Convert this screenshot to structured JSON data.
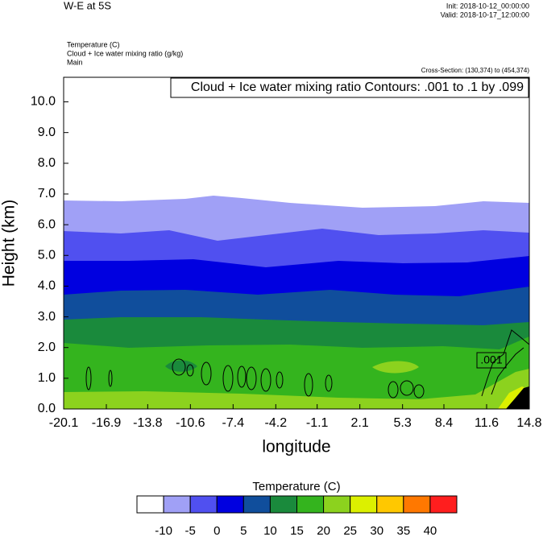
{
  "chart_data": {
    "type": "contour",
    "title": "W-E at 5S",
    "init_label": "Init: 2018-10-12_00:00:00",
    "valid_label": "Valid: 2018-10-17_12:00:00",
    "fill_field_label": "Temperature   (C)",
    "contour_field_label": "Cloud + Ice water mixing ratio   (g/kg)",
    "run_label": "Main",
    "cross_section_label": "Cross-Section: (130,374) to (454,374)",
    "contour_info": "Cloud + Ice water mixing ratio Contours: .001 to .1 by .099",
    "contour_line_label": ".001",
    "x_label": "longitude",
    "y_label": "Height (km)",
    "xlim": [
      -20.1,
      14.8
    ],
    "xticks": [
      -20.1,
      -16.9,
      -13.8,
      -10.6,
      -7.4,
      -4.2,
      -1.1,
      2.1,
      5.3,
      8.4,
      11.6,
      14.8
    ],
    "ylim": [
      0,
      10.8
    ],
    "yticks": [
      {
        "value": 0,
        "label": "0.0"
      },
      {
        "value": 1,
        "label": "1.0"
      },
      {
        "value": 2,
        "label": "2.0"
      },
      {
        "value": 3,
        "label": "3.0"
      },
      {
        "value": 4,
        "label": "4.0"
      },
      {
        "value": 5,
        "label": "5.0"
      },
      {
        "value": 6,
        "label": "6.0"
      },
      {
        "value": 7,
        "label": "7.0"
      },
      {
        "value": 8,
        "label": "8.0"
      },
      {
        "value": 9,
        "label": "9.0"
      },
      {
        "value": 10,
        "label": "10.0"
      }
    ],
    "colorbar": {
      "title": "Temperature  (C)",
      "levels": [
        -10,
        -5,
        0,
        5,
        10,
        15,
        20,
        25,
        30,
        35,
        40
      ],
      "colors": [
        "#ffffff",
        "#a0a0f6",
        "#5050f0",
        "#0000e0",
        "#104e9c",
        "#1a8a3c",
        "#34b41e",
        "#8cd21e",
        "#dcf000",
        "#ffc800",
        "#ff7800",
        "#ff1e1e"
      ]
    }
  }
}
